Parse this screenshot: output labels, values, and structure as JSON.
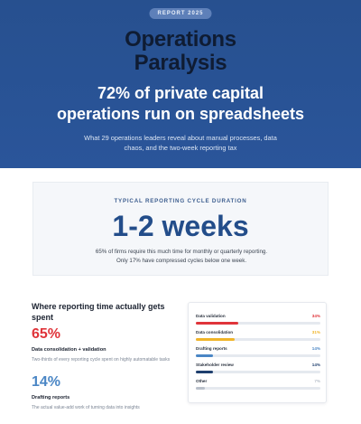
{
  "hero": {
    "badge": "REPORT 2025",
    "brand_line1": "Operations",
    "brand_line2": "Paralysis",
    "headline_line1": "72% of private capital",
    "headline_line2": "operations run on spreadsheets",
    "subhead_line1": "What 29 operations leaders reveal about manual processes, data",
    "subhead_line2": "chaos, and the two-week reporting tax",
    "colors": {
      "background": "#2a559a",
      "badge_bg": "#5e80b9"
    }
  },
  "stat": {
    "eyebrow": "TYPICAL REPORTING CYCLE DURATION",
    "value": "1-2 weeks",
    "note_line1": "65% of firms require this much time for monthly or quarterly reporting.",
    "note_line2": "Only 17% have compressed cycles below one week.",
    "colors": {
      "value": "#234d8a",
      "card_bg": "#f5f7fa"
    }
  },
  "section": {
    "title_line1": "Where reporting time actually gets",
    "title_line2": "spent",
    "metrics": [
      {
        "value": "65%",
        "label": "Data consolidation + validation",
        "desc": "Two-thirds of every reporting cycle spent on highly automatable tasks",
        "color": "#e0343a"
      },
      {
        "value": "14%",
        "label": "Drafting reports",
        "desc": "The actual value-add work of turning data into insights",
        "color": "#4a86c5"
      }
    ]
  },
  "breakdown": [
    {
      "label": "Data validation",
      "pct": "34%",
      "value": 34,
      "color": "#e0343a"
    },
    {
      "label": "Data consolidation",
      "pct": "31%",
      "value": 31,
      "color": "#f0b429"
    },
    {
      "label": "Drafting reports",
      "pct": "14%",
      "value": 14,
      "color": "#4a86c5"
    },
    {
      "label": "Stakeholder review",
      "pct": "14%",
      "value": 14,
      "color": "#1f3f6e"
    },
    {
      "label": "Other",
      "pct": "7%",
      "value": 7,
      "color": "#b9c0ca"
    }
  ]
}
